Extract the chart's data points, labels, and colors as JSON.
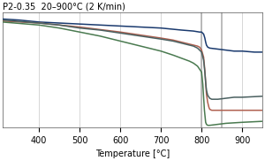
{
  "title": "P2-0.35  20–900°C (2 K/min)",
  "xlabel": "Temperature [°C]",
  "xlim": [
    310,
    950
  ],
  "xticks": [
    400,
    500,
    600,
    700,
    800,
    900
  ],
  "ylim": [
    -0.105,
    0.01
  ],
  "yticks": [],
  "vlines": [
    800,
    850
  ],
  "vline_color": "#b0b0b0",
  "grid_color": "#c8c8c8",
  "bg_color": "#ffffff",
  "curves": [
    {
      "color": "#1a3a6e",
      "points": [
        [
          310,
          0.003
        ],
        [
          350,
          0.002
        ],
        [
          400,
          0.0
        ],
        [
          450,
          -0.001
        ],
        [
          500,
          -0.002
        ],
        [
          550,
          -0.003
        ],
        [
          600,
          -0.004
        ],
        [
          650,
          -0.005
        ],
        [
          700,
          -0.006
        ],
        [
          750,
          -0.008
        ],
        [
          780,
          -0.009
        ],
        [
          795,
          -0.01
        ],
        [
          800,
          -0.01
        ],
        [
          805,
          -0.012
        ],
        [
          808,
          -0.016
        ],
        [
          810,
          -0.02
        ],
        [
          812,
          -0.023
        ],
        [
          815,
          -0.025
        ],
        [
          820,
          -0.026
        ],
        [
          840,
          -0.027
        ],
        [
          860,
          -0.028
        ],
        [
          880,
          -0.029
        ],
        [
          900,
          -0.029
        ],
        [
          930,
          -0.03
        ],
        [
          950,
          -0.03
        ]
      ]
    },
    {
      "color": "#b06050",
      "points": [
        [
          310,
          0.001
        ],
        [
          400,
          -0.001
        ],
        [
          500,
          -0.005
        ],
        [
          600,
          -0.01
        ],
        [
          650,
          -0.013
        ],
        [
          700,
          -0.016
        ],
        [
          730,
          -0.018
        ],
        [
          750,
          -0.02
        ],
        [
          770,
          -0.022
        ],
        [
          780,
          -0.023
        ],
        [
          790,
          -0.024
        ],
        [
          795,
          -0.025
        ],
        [
          800,
          -0.028
        ],
        [
          805,
          -0.035
        ],
        [
          808,
          -0.048
        ],
        [
          810,
          -0.06
        ],
        [
          812,
          -0.072
        ],
        [
          815,
          -0.08
        ],
        [
          818,
          -0.085
        ],
        [
          820,
          -0.087
        ],
        [
          825,
          -0.088
        ],
        [
          830,
          -0.088
        ],
        [
          850,
          -0.088
        ],
        [
          900,
          -0.088
        ],
        [
          950,
          -0.088
        ]
      ]
    },
    {
      "color": "#4a6060",
      "points": [
        [
          310,
          0.002
        ],
        [
          400,
          -0.001
        ],
        [
          450,
          -0.003
        ],
        [
          500,
          -0.006
        ],
        [
          550,
          -0.008
        ],
        [
          600,
          -0.011
        ],
        [
          650,
          -0.014
        ],
        [
          700,
          -0.017
        ],
        [
          730,
          -0.019
        ],
        [
          750,
          -0.021
        ],
        [
          770,
          -0.023
        ],
        [
          780,
          -0.024
        ],
        [
          790,
          -0.026
        ],
        [
          795,
          -0.028
        ],
        [
          800,
          -0.03
        ],
        [
          805,
          -0.038
        ],
        [
          808,
          -0.05
        ],
        [
          810,
          -0.06
        ],
        [
          812,
          -0.068
        ],
        [
          815,
          -0.073
        ],
        [
          820,
          -0.076
        ],
        [
          825,
          -0.077
        ],
        [
          840,
          -0.077
        ],
        [
          860,
          -0.076
        ],
        [
          880,
          -0.075
        ],
        [
          900,
          -0.075
        ],
        [
          950,
          -0.074
        ]
      ]
    },
    {
      "color": "#4a7a50",
      "points": [
        [
          310,
          0.0
        ],
        [
          400,
          -0.003
        ],
        [
          450,
          -0.006
        ],
        [
          500,
          -0.01
        ],
        [
          550,
          -0.014
        ],
        [
          600,
          -0.019
        ],
        [
          650,
          -0.024
        ],
        [
          700,
          -0.029
        ],
        [
          730,
          -0.033
        ],
        [
          750,
          -0.036
        ],
        [
          770,
          -0.039
        ],
        [
          780,
          -0.041
        ],
        [
          790,
          -0.044
        ],
        [
          795,
          -0.047
        ],
        [
          800,
          -0.05
        ],
        [
          803,
          -0.062
        ],
        [
          805,
          -0.075
        ],
        [
          807,
          -0.088
        ],
        [
          809,
          -0.096
        ],
        [
          810,
          -0.1
        ],
        [
          812,
          -0.102
        ],
        [
          815,
          -0.103
        ],
        [
          820,
          -0.103
        ],
        [
          840,
          -0.102
        ],
        [
          860,
          -0.101
        ],
        [
          900,
          -0.1
        ],
        [
          950,
          -0.099
        ]
      ]
    }
  ]
}
